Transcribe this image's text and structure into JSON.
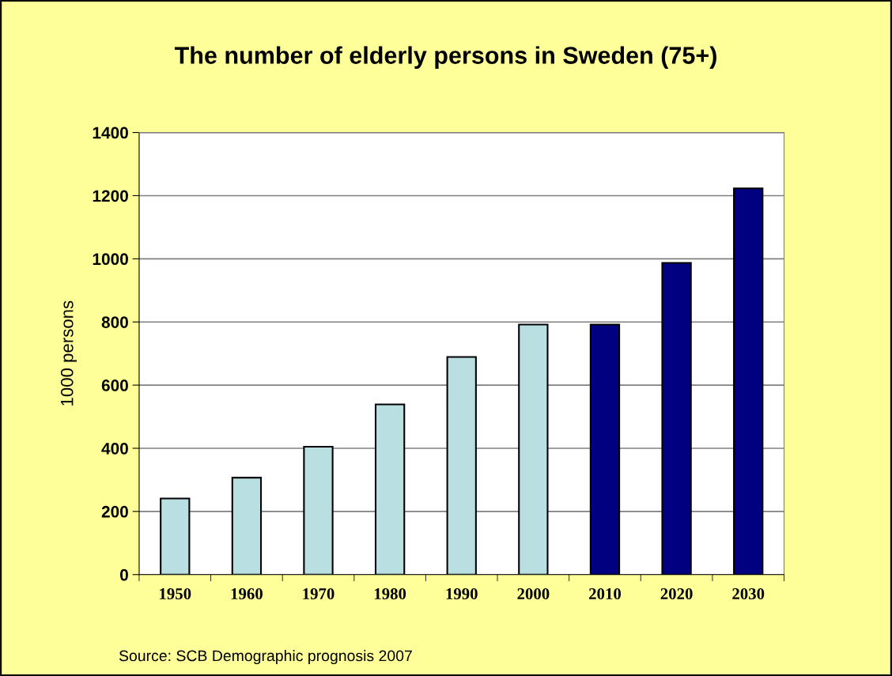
{
  "chart_data": {
    "type": "bar",
    "title": "The number of elderly persons in Sweden (75+)",
    "ylabel": "1000 persons",
    "categories": [
      "1950",
      "1960",
      "1970",
      "1980",
      "1990",
      "2000",
      "2010",
      "2020",
      "2030"
    ],
    "values": [
      241,
      307,
      405,
      539,
      689,
      792,
      792,
      987,
      1223
    ],
    "colors": [
      "#b9dfe2",
      "#b9dfe2",
      "#b9dfe2",
      "#b9dfe2",
      "#b9dfe2",
      "#b9dfe2",
      "#000080",
      "#000080",
      "#000080"
    ],
    "ylim": [
      0,
      1400
    ],
    "yticks": [
      0,
      200,
      400,
      600,
      800,
      1000,
      1200,
      1400
    ],
    "grid": "y",
    "annotations": [
      "Source: SCB Demographic prognosis 2007"
    ]
  }
}
